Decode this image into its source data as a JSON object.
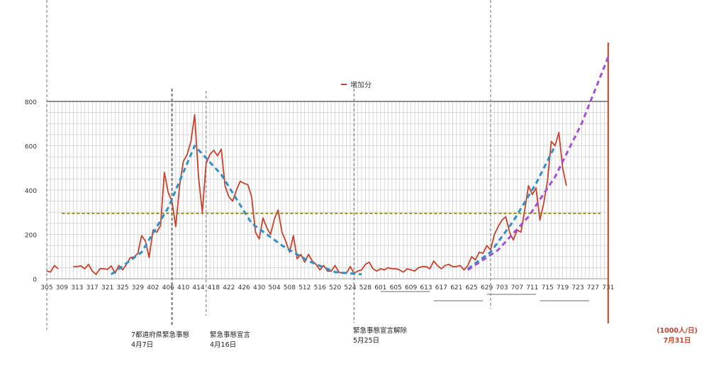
{
  "chart_data": {
    "type": "line",
    "legend": {
      "label": "増加分",
      "color": "#c8412b",
      "position": "top-center"
    },
    "x_range": [
      "2020-03-05",
      "2020-07-31"
    ],
    "ylim": [
      0,
      800
    ],
    "y_ticks": [
      0,
      200,
      400,
      600,
      800
    ],
    "x_tick_labels": [
      "305",
      "309",
      "313",
      "317",
      "321",
      "325",
      "329",
      "402",
      "406",
      "410",
      "414",
      "418",
      "422",
      "426",
      "430",
      "504",
      "508",
      "512",
      "516",
      "520",
      "524",
      "528",
      "601",
      "605",
      "609",
      "613",
      "617",
      "621",
      "625",
      "629",
      "703",
      "707",
      "711",
      "715",
      "719",
      "723",
      "727",
      "731"
    ],
    "grid": true,
    "series": [
      {
        "name": "増加分",
        "color": "#c8412b",
        "x": [
          "2020-03-05",
          "2020-03-06",
          "2020-03-07",
          "2020-03-08",
          "2020-03-12",
          "2020-03-13",
          "2020-03-14",
          "2020-03-15",
          "2020-03-16",
          "2020-03-17",
          "2020-03-18",
          "2020-03-19",
          "2020-03-20",
          "2020-03-21",
          "2020-03-22",
          "2020-03-23",
          "2020-03-24",
          "2020-03-25",
          "2020-03-26",
          "2020-03-27",
          "2020-03-28",
          "2020-03-29",
          "2020-03-30",
          "2020-03-31",
          "2020-04-01",
          "2020-04-02",
          "2020-04-03",
          "2020-04-04",
          "2020-04-05",
          "2020-04-06",
          "2020-04-07",
          "2020-04-08",
          "2020-04-09",
          "2020-04-10",
          "2020-04-11",
          "2020-04-12",
          "2020-04-13",
          "2020-04-14",
          "2020-04-15",
          "2020-04-16",
          "2020-04-17",
          "2020-04-18",
          "2020-04-19",
          "2020-04-20",
          "2020-04-21",
          "2020-04-22",
          "2020-04-23",
          "2020-04-24",
          "2020-04-25",
          "2020-04-26",
          "2020-04-27",
          "2020-04-28",
          "2020-04-29",
          "2020-04-30",
          "2020-05-01",
          "2020-05-02",
          "2020-05-03",
          "2020-05-04",
          "2020-05-05",
          "2020-05-06",
          "2020-05-07",
          "2020-05-08",
          "2020-05-09",
          "2020-05-10",
          "2020-05-11",
          "2020-05-12",
          "2020-05-13",
          "2020-05-14",
          "2020-05-15",
          "2020-05-16",
          "2020-05-17",
          "2020-05-18",
          "2020-05-19",
          "2020-05-20",
          "2020-05-21",
          "2020-05-22",
          "2020-05-23",
          "2020-05-24",
          "2020-05-25",
          "2020-05-26",
          "2020-05-27",
          "2020-05-28",
          "2020-05-29",
          "2020-05-30",
          "2020-05-31",
          "2020-06-01",
          "2020-06-02",
          "2020-06-03",
          "2020-06-04",
          "2020-06-05",
          "2020-06-06",
          "2020-06-07",
          "2020-06-08",
          "2020-06-09",
          "2020-06-10",
          "2020-06-11",
          "2020-06-12",
          "2020-06-13",
          "2020-06-14",
          "2020-06-15",
          "2020-06-16",
          "2020-06-17",
          "2020-06-18",
          "2020-06-19",
          "2020-06-20",
          "2020-06-21",
          "2020-06-22",
          "2020-06-23",
          "2020-06-24",
          "2020-06-25",
          "2020-06-26",
          "2020-06-27",
          "2020-06-28",
          "2020-06-29",
          "2020-06-30",
          "2020-07-01",
          "2020-07-02",
          "2020-07-03",
          "2020-07-04",
          "2020-07-05",
          "2020-07-06",
          "2020-07-07",
          "2020-07-08",
          "2020-07-09",
          "2020-07-10",
          "2020-07-11",
          "2020-07-12",
          "2020-07-13",
          "2020-07-14",
          "2020-07-15",
          "2020-07-16",
          "2020-07-17",
          "2020-07-18",
          "2020-07-19",
          "2020-07-20"
        ],
        "values": [
          35,
          30,
          60,
          45,
          55,
          55,
          58,
          45,
          65,
          35,
          20,
          45,
          45,
          42,
          58,
          25,
          60,
          40,
          65,
          95,
          98,
          115,
          195,
          170,
          95,
          220,
          210,
          240,
          480,
          390,
          350,
          235,
          420,
          530,
          560,
          620,
          740,
          460,
          300,
          520,
          560,
          580,
          555,
          585,
          420,
          370,
          350,
          400,
          440,
          430,
          425,
          370,
          210,
          180,
          275,
          230,
          200,
          270,
          310,
          210,
          170,
          120,
          195,
          90,
          110,
          75,
          110,
          80,
          65,
          40,
          60,
          35,
          35,
          60,
          30,
          25,
          25,
          55,
          25,
          35,
          40,
          65,
          75,
          45,
          35,
          45,
          40,
          50,
          45,
          45,
          40,
          30,
          45,
          40,
          35,
          50,
          55,
          55,
          45,
          80,
          60,
          45,
          60,
          65,
          55,
          55,
          60,
          40,
          60,
          100,
          85,
          120,
          115,
          150,
          130,
          200,
          235,
          265,
          280,
          210,
          175,
          220,
          210,
          310,
          420,
          380,
          410,
          265,
          340,
          440,
          620,
          600,
          660,
          500,
          420
        ]
      },
      {
        "name": "",
        "color": "#2f8fc6",
        "style": "dashed",
        "x": [
          "2020-03-22",
          "2020-03-30",
          "2020-04-06",
          "2020-04-13",
          "2020-04-20",
          "2020-04-28",
          "2020-05-06",
          "2020-05-13",
          "2020-05-20",
          "2020-05-27"
        ],
        "values": [
          20,
          120,
          320,
          600,
          470,
          250,
          150,
          80,
          30,
          20
        ]
      },
      {
        "name": "",
        "color": "#2f8fc6",
        "style": "dashed",
        "x": [
          "2020-06-24",
          "2020-06-30",
          "2020-07-06",
          "2020-07-12",
          "2020-07-17"
        ],
        "values": [
          45,
          120,
          260,
          430,
          600
        ]
      },
      {
        "name": "",
        "color": "#a64fd4",
        "style": "dashed",
        "x": [
          "2020-06-24",
          "2020-07-02",
          "2020-07-10",
          "2020-07-17",
          "2020-07-24",
          "2020-07-31"
        ],
        "values": [
          40,
          130,
          280,
          460,
          700,
          1000
        ]
      },
      {
        "name": "",
        "color": "#9a7a08",
        "style": "dotted",
        "x": [
          "2020-03-09",
          "2020-07-29"
        ],
        "values": [
          295,
          295
        ]
      }
    ],
    "vertical_markers": [
      {
        "x": "2020-04-07",
        "lines": [
          "7都道府県緊急事態",
          "4月7日"
        ],
        "color": "#888888"
      },
      {
        "x": "2020-04-16",
        "lines": [
          "緊急事態宣言",
          "4月16日"
        ],
        "color": "#999999"
      },
      {
        "x": "2020-05-25",
        "lines": [
          "緊急事態宣言解除",
          "5月25日"
        ],
        "color": "#888888"
      },
      {
        "x": "2020-06-30",
        "lines": [],
        "color": "#999999"
      },
      {
        "x": "2020-03-05",
        "lines": [],
        "color": "#999999"
      },
      {
        "x": "2020-07-31",
        "lines": [
          "(1000人/日)",
          "7月31日"
        ],
        "color": "#c8412b"
      }
    ],
    "week_brackets": [
      [
        "2020-06-01",
        "2020-06-14"
      ],
      [
        "2020-06-15",
        "2020-06-28"
      ],
      [
        "2020-06-29",
        "2020-07-12"
      ],
      [
        "2020-07-13",
        "2020-07-26"
      ]
    ]
  }
}
